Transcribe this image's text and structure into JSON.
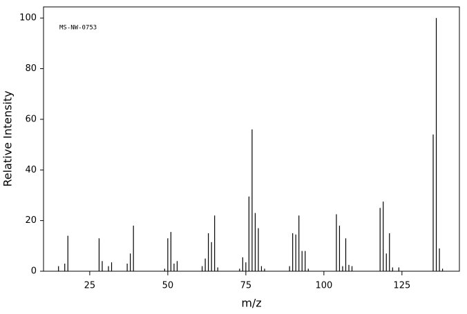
{
  "chart_data": {
    "type": "bar",
    "annotation": "MS-NW-0753",
    "x_label": "m/z",
    "y_label": "Relative Intensity",
    "x": [
      15,
      17,
      18,
      28,
      29,
      31,
      32,
      37,
      38,
      39,
      49,
      50,
      51,
      52,
      53,
      61,
      62,
      63,
      64,
      65,
      66,
      73,
      74,
      75,
      76,
      77,
      78,
      79,
      80,
      81,
      89,
      90,
      91,
      92,
      93,
      94,
      95,
      104,
      105,
      106,
      107,
      108,
      109,
      118,
      119,
      120,
      121,
      122,
      124,
      135,
      136,
      137,
      138
    ],
    "values": [
      2,
      3,
      14,
      13,
      4,
      2,
      3.5,
      3,
      7,
      18,
      1,
      13,
      15.5,
      3,
      4,
      2,
      5,
      15,
      11.5,
      22,
      1.5,
      1,
      5.5,
      3.5,
      29.5,
      56,
      23,
      17,
      2,
      1,
      2,
      15,
      14.5,
      22,
      8,
      8,
      1,
      22.5,
      18,
      2,
      13,
      2.5,
      2,
      25,
      27.5,
      7,
      15,
      1.5,
      1.5,
      54,
      100,
      9,
      1
    ],
    "color": "#000000",
    "xlim": [
      10.2,
      143.4
    ],
    "xticks": [
      25,
      50,
      75,
      100,
      125
    ],
    "ylim": [
      0,
      104.4
    ],
    "yticks": [
      0,
      20,
      40,
      60,
      80,
      100
    ]
  }
}
